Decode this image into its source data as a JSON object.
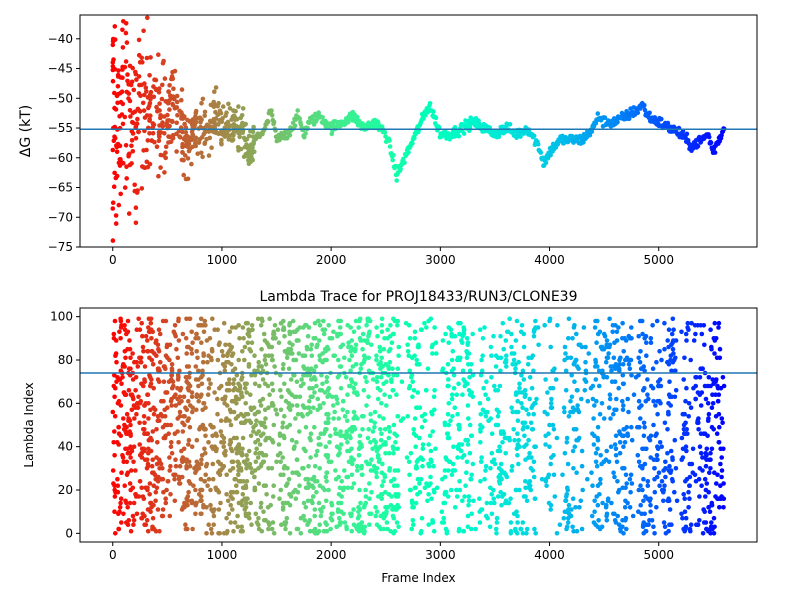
{
  "chart_data": [
    {
      "type": "scatter",
      "title": "",
      "xlabel": "",
      "ylabel": "ΔG (kT)",
      "xlim": [
        -300,
        5900
      ],
      "ylim": [
        -75,
        -36
      ],
      "xticks": [
        0,
        1000,
        2000,
        3000,
        4000,
        5000
      ],
      "yticks": [
        -75,
        -70,
        -65,
        -60,
        -55,
        -50,
        -45,
        -40
      ],
      "hline": -55.2,
      "hline_color": "#1f77b4",
      "colormap": "rainbow (red at frame 0 → violet at last frame)",
      "grid": false,
      "legend": "none",
      "series": [
        {
          "x": [
            0,
            30,
            60,
            100,
            150,
            200,
            250,
            300,
            400,
            500,
            550,
            600,
            700,
            800,
            900,
            1000,
            1100,
            1200,
            1250,
            1300,
            1400,
            1450,
            1500,
            1600,
            1700,
            1750,
            1800,
            1900,
            2000,
            2100,
            2200,
            2300,
            2400,
            2500,
            2550,
            2600,
            2700,
            2750,
            2800,
            2900,
            3000,
            3100,
            3200,
            3300,
            3400,
            3500,
            3600,
            3700,
            3800,
            3900,
            3950,
            4000,
            4100,
            4200,
            4300,
            4400,
            4450,
            4500,
            4600,
            4700,
            4800,
            4850,
            4900,
            5000,
            5100,
            5200,
            5300,
            5400,
            5450,
            5500,
            5600
          ],
          "y": [
            -50,
            -55,
            -53,
            -50,
            -55,
            -54,
            -55,
            -52,
            -53,
            -55,
            -50,
            -55,
            -57,
            -56,
            -53,
            -54,
            -54,
            -55,
            -60,
            -57,
            -55,
            -52,
            -57,
            -56,
            -53,
            -56,
            -54,
            -53,
            -55,
            -54,
            -53,
            -55,
            -54,
            -56,
            -59,
            -63,
            -59,
            -57,
            -55,
            -51,
            -56,
            -56,
            -55,
            -54,
            -55,
            -56,
            -55,
            -56,
            -55,
            -58,
            -61,
            -59,
            -57,
            -57,
            -57,
            -55,
            -53,
            -54,
            -54,
            -53,
            -52,
            -51,
            -53,
            -54,
            -55,
            -56,
            -58,
            -57,
            -56,
            -59,
            -55
          ]
        }
      ]
    },
    {
      "type": "scatter",
      "title": "Lambda Trace for PROJ18433/RUN3/CLONE39",
      "xlabel": "Frame Index",
      "ylabel": "Lambda Index",
      "xlim": [
        -300,
        5900
      ],
      "ylim": [
        -4,
        104
      ],
      "xticks": [
        0,
        1000,
        2000,
        3000,
        4000,
        5000
      ],
      "yticks": [
        0,
        20,
        40,
        60,
        80,
        100
      ],
      "hline": 74,
      "hline_color": "#1f77b4",
      "colormap": "rainbow (red at frame 0 → violet at last frame)",
      "grid": false,
      "legend": "none",
      "series": [
        {
          "x_range": [
            0,
            5600
          ],
          "y_range": [
            0,
            100
          ],
          "description_points": "thousands of frames, lambda index scattered uniformly across 0–100"
        }
      ]
    }
  ]
}
